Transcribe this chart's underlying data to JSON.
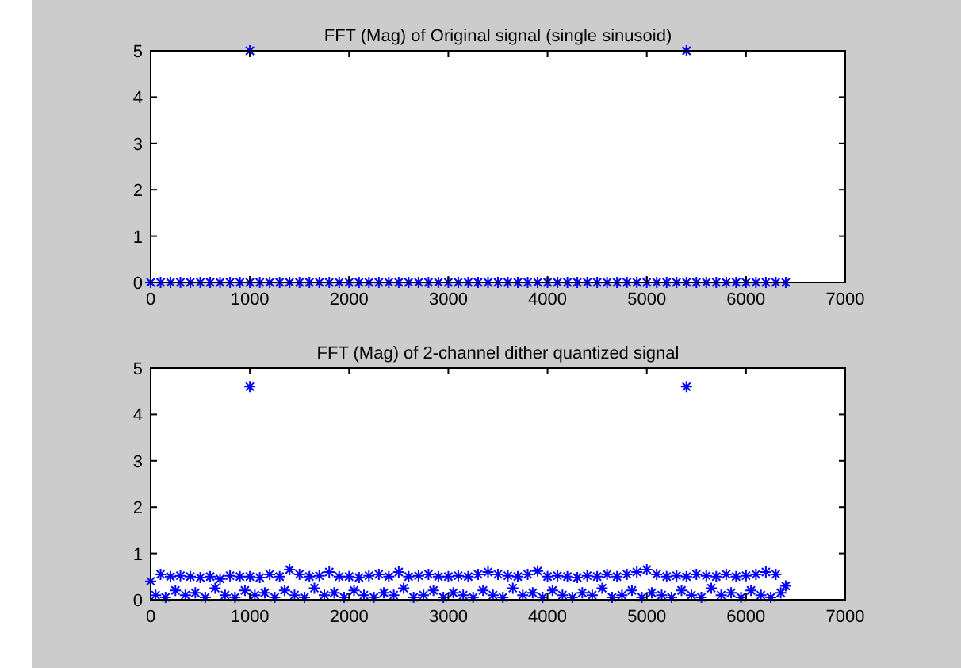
{
  "chart_data": [
    {
      "type": "scatter",
      "title": "FFT (Mag) of Original signal (single sinusoid)",
      "color": "#0000ff",
      "marker": "cross",
      "xlim": [
        0,
        7000
      ],
      "xticks": [
        0,
        1000,
        2000,
        3000,
        4000,
        5000,
        6000,
        7000
      ],
      "ylim": [
        0,
        5
      ],
      "yticks": [
        0,
        1,
        2,
        3,
        4,
        5
      ],
      "grid": false,
      "x": [
        0,
        100,
        200,
        300,
        400,
        500,
        600,
        700,
        800,
        900,
        1000,
        1100,
        1200,
        1300,
        1400,
        1500,
        1600,
        1700,
        1800,
        1900,
        2000,
        2100,
        2200,
        2300,
        2400,
        2500,
        2600,
        2700,
        2800,
        2900,
        3000,
        3100,
        3200,
        3300,
        3400,
        3500,
        3600,
        3700,
        3800,
        3900,
        4000,
        4100,
        4200,
        4300,
        4400,
        4500,
        4600,
        4700,
        4800,
        4900,
        5000,
        5100,
        5200,
        5300,
        5400,
        5500,
        5600,
        5700,
        5800,
        5900,
        6000,
        6100,
        6200,
        6300,
        6400,
        1000,
        5400
      ],
      "values": [
        0,
        0,
        0,
        0,
        0,
        0,
        0,
        0,
        0,
        0,
        0,
        0,
        0,
        0,
        0,
        0,
        0,
        0,
        0,
        0,
        0,
        0,
        0,
        0,
        0,
        0,
        0,
        0,
        0,
        0,
        0,
        0,
        0,
        0,
        0,
        0,
        0,
        0,
        0,
        0,
        0,
        0,
        0,
        0,
        0,
        0,
        0,
        0,
        0,
        0,
        0,
        0,
        0,
        0,
        0,
        0,
        0,
        0,
        0,
        0,
        0,
        0,
        0,
        0,
        0,
        5,
        5
      ]
    },
    {
      "type": "scatter",
      "title": "FFT (Mag) of 2-channel dither quantized signal",
      "color": "#0000ff",
      "marker": "cross",
      "xlim": [
        0,
        7000
      ],
      "xticks": [
        0,
        1000,
        2000,
        3000,
        4000,
        5000,
        6000,
        7000
      ],
      "ylim": [
        0,
        5
      ],
      "yticks": [
        0,
        1,
        2,
        3,
        4,
        5
      ],
      "grid": false,
      "x": [
        0,
        100,
        200,
        300,
        400,
        500,
        600,
        700,
        800,
        900,
        1000,
        1100,
        1200,
        1300,
        1400,
        1500,
        1600,
        1700,
        1800,
        1900,
        2000,
        2100,
        2200,
        2300,
        2400,
        2500,
        2600,
        2700,
        2800,
        2900,
        3000,
        3100,
        3200,
        3300,
        3400,
        3500,
        3600,
        3700,
        3800,
        3900,
        4000,
        4100,
        4200,
        4300,
        4400,
        4500,
        4600,
        4700,
        4800,
        4900,
        5000,
        5100,
        5200,
        5300,
        5400,
        5500,
        5600,
        5700,
        5800,
        5900,
        6000,
        6100,
        6200,
        6300,
        6400,
        50,
        150,
        250,
        350,
        450,
        550,
        650,
        750,
        850,
        950,
        1050,
        1150,
        1250,
        1350,
        1450,
        1550,
        1650,
        1750,
        1850,
        1950,
        2050,
        2150,
        2250,
        2350,
        2450,
        2550,
        2650,
        2750,
        2850,
        2950,
        3050,
        3150,
        3250,
        3350,
        3450,
        3550,
        3650,
        3750,
        3850,
        3950,
        4050,
        4150,
        4250,
        4350,
        4450,
        4550,
        4650,
        4750,
        4850,
        4950,
        5050,
        5150,
        5250,
        5350,
        5450,
        5550,
        5650,
        5750,
        5850,
        5950,
        6050,
        6150,
        6250,
        6350,
        1000,
        5400
      ],
      "values": [
        0.4,
        0.55,
        0.5,
        0.52,
        0.5,
        0.48,
        0.5,
        0.45,
        0.52,
        0.5,
        0.5,
        0.48,
        0.55,
        0.5,
        0.65,
        0.55,
        0.5,
        0.52,
        0.6,
        0.5,
        0.5,
        0.48,
        0.52,
        0.55,
        0.5,
        0.6,
        0.5,
        0.52,
        0.55,
        0.5,
        0.5,
        0.52,
        0.5,
        0.55,
        0.6,
        0.55,
        0.52,
        0.5,
        0.55,
        0.62,
        0.5,
        0.52,
        0.5,
        0.48,
        0.52,
        0.5,
        0.55,
        0.5,
        0.55,
        0.6,
        0.65,
        0.55,
        0.5,
        0.52,
        0.5,
        0.55,
        0.52,
        0.5,
        0.55,
        0.5,
        0.52,
        0.55,
        0.6,
        0.55,
        0.3,
        0.1,
        0.05,
        0.2,
        0.1,
        0.15,
        0.05,
        0.25,
        0.1,
        0.05,
        0.2,
        0.1,
        0.15,
        0.05,
        0.2,
        0.1,
        0.05,
        0.25,
        0.1,
        0.15,
        0.05,
        0.2,
        0.1,
        0.05,
        0.15,
        0.1,
        0.25,
        0.05,
        0.1,
        0.2,
        0.05,
        0.15,
        0.1,
        0.05,
        0.2,
        0.1,
        0.05,
        0.25,
        0.1,
        0.15,
        0.05,
        0.2,
        0.1,
        0.05,
        0.15,
        0.1,
        0.25,
        0.05,
        0.1,
        0.2,
        0.05,
        0.15,
        0.1,
        0.05,
        0.2,
        0.1,
        0.05,
        0.25,
        0.1,
        0.15,
        0.05,
        0.2,
        0.1,
        0.05,
        0.15,
        4.6,
        4.6
      ]
    }
  ]
}
